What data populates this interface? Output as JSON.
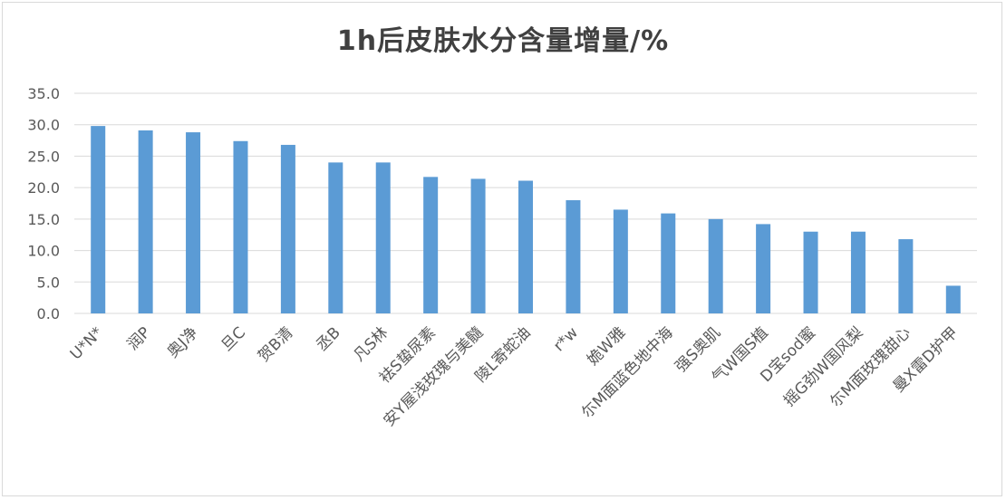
{
  "chart_data": {
    "type": "bar",
    "title": "1h后皮肤水分含量增量/%",
    "xlabel": "",
    "ylabel": "",
    "ylim": [
      0,
      35
    ],
    "yticks": [
      "0.0",
      "5.0",
      "10.0",
      "15.0",
      "20.0",
      "25.0",
      "30.0",
      "35.0"
    ],
    "grid": true,
    "color": "#5B9BD5",
    "categories": [
      "U*N*",
      "润P",
      "奥J净",
      "旦C",
      "贺B清",
      "丞B",
      "凡S林",
      "袪S蛰尿素",
      "安Y屋浅玫瑰与美髓",
      "陵L寄蛇油",
      "r*w",
      "姽W雅",
      "尓M面蓝色地中海",
      "强S奥肌",
      "气W国S植",
      "D宝sod蜜",
      "摇G劲W国风梨",
      "尓M面玫瑰甜心",
      "曼X雷D护甲"
    ],
    "values": [
      29.8,
      29.1,
      28.8,
      27.4,
      26.8,
      24.0,
      24.0,
      21.7,
      21.4,
      21.1,
      18.0,
      16.5,
      15.9,
      15.0,
      14.2,
      13.0,
      13.0,
      11.8,
      4.4
    ]
  }
}
